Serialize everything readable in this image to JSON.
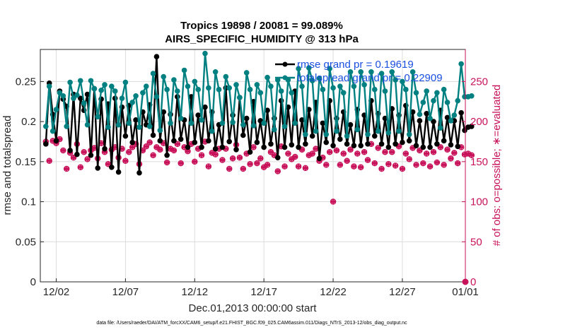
{
  "chart_data": {
    "type": "line",
    "title_line1": "Tropics 19898 / 20081 = 99.089%",
    "title_line2": "AIRS_SPECIFIC_HUMIDITY @ 313 hPa",
    "xlabel": "Dec.01,2013 00:00:00 start",
    "ylabel": "rmse and totalspread",
    "y2label": "# of obs: o=possible; ∗=evaluated",
    "footer": "data file: /Users/raeder/DAI/ATM_forcXX/CAM6_setup/f.e21.FHIST_BGC.f09_025.CAM6assim.011/Diags_NTrS_2013-12/obs_diag_output.nc",
    "xlim": [
      0.6,
      31.3
    ],
    "ylim": [
      0,
      0.29
    ],
    "y2lim": [
      0,
      290
    ],
    "xticks": [
      1.75,
      6.75,
      11.75,
      16.75,
      21.75,
      26.75,
      31.75
    ],
    "xtick_labels": [
      "12/02",
      "12/07",
      "12/12",
      "12/17",
      "12/22",
      "12/27",
      "01/01"
    ],
    "yticks": [
      0,
      0.05,
      0.1,
      0.15,
      0.2,
      0.25
    ],
    "ytick_labels": [
      "0",
      "0.05",
      "0.1",
      "0.15",
      "0.2",
      "0.25"
    ],
    "y2ticks": [
      0,
      50,
      100,
      150,
      200,
      250
    ],
    "y2tick_labels": [
      "0",
      "50",
      "100",
      "150",
      "200",
      "250"
    ],
    "series_meta": [
      {
        "name": "rmse grand pr = 0.19619",
        "color": "#000000"
      },
      {
        "name": "totalspread grand pr = 0.22909",
        "color": "#008080"
      },
      {
        "name": "obs possible",
        "color": "#c8125a"
      },
      {
        "name": "obs evaluated",
        "color": "#c8125a"
      }
    ],
    "n_points": 124,
    "x_start": 1.0,
    "x_step": 0.25,
    "series": [
      {
        "name": "rmse",
        "values": [
          0.172,
          0.248,
          0.209,
          0.176,
          0.238,
          0.228,
          0.219,
          0.164,
          0.234,
          0.159,
          0.229,
          0.214,
          0.234,
          0.158,
          0.241,
          0.142,
          0.228,
          0.166,
          0.222,
          0.143,
          0.229,
          0.137,
          0.218,
          0.182,
          0.22,
          0.174,
          0.202,
          0.136,
          0.212,
          0.196,
          0.221,
          0.183,
          0.281,
          0.176,
          0.212,
          0.158,
          0.209,
          0.176,
          0.231,
          0.178,
          0.202,
          0.168,
          0.231,
          0.174,
          0.208,
          0.168,
          0.218,
          0.176,
          0.212,
          0.166,
          0.196,
          0.168,
          0.242,
          0.175,
          0.208,
          0.165,
          0.23,
          0.183,
          0.204,
          0.162,
          0.225,
          0.174,
          0.201,
          0.168,
          0.214,
          0.172,
          0.204,
          0.155,
          0.226,
          0.168,
          0.218,
          0.171,
          0.238,
          0.168,
          0.202,
          0.172,
          0.215,
          0.182,
          0.224,
          0.154,
          0.198,
          0.174,
          0.226,
          0.17,
          0.204,
          0.178,
          0.212,
          0.172,
          0.196,
          0.17,
          0.215,
          0.17,
          0.208,
          0.172,
          0.226,
          0.182,
          0.21,
          0.172,
          0.204,
          0.168,
          0.216,
          0.172,
          0.208,
          0.174,
          0.22,
          0.176,
          0.212,
          0.17,
          0.201,
          0.168,
          0.21,
          0.168,
          0.2,
          0.172,
          0.214,
          0.176,
          0.205,
          0.171,
          0.201,
          0.169,
          0.211,
          0.189,
          0.193,
          0.194
        ]
      },
      {
        "name": "totalspread",
        "values": [
          0.194,
          0.244,
          0.188,
          0.215,
          0.236,
          0.232,
          0.194,
          0.249,
          0.229,
          0.233,
          0.251,
          0.223,
          0.196,
          0.251,
          0.241,
          0.206,
          0.239,
          0.246,
          0.193,
          0.244,
          0.238,
          0.196,
          0.229,
          0.249,
          0.198,
          0.224,
          0.232,
          0.193,
          0.236,
          0.244,
          0.194,
          0.26,
          0.231,
          0.189,
          0.256,
          0.24,
          0.198,
          0.252,
          0.238,
          0.204,
          0.264,
          0.244,
          0.198,
          0.25,
          0.24,
          0.202,
          0.285,
          0.242,
          0.188,
          0.262,
          0.24,
          0.198,
          0.256,
          0.242,
          0.199,
          0.246,
          0.23,
          0.196,
          0.261,
          0.24,
          0.195,
          0.246,
          0.236,
          0.198,
          0.255,
          0.244,
          0.19,
          0.252,
          0.238,
          0.194,
          0.252,
          0.236,
          0.198,
          0.266,
          0.244,
          0.184,
          0.267,
          0.251,
          0.188,
          0.254,
          0.24,
          0.184,
          0.266,
          0.242,
          0.188,
          0.244,
          0.236,
          0.182,
          0.262,
          0.244,
          0.19,
          0.262,
          0.246,
          0.184,
          0.262,
          0.24,
          0.188,
          0.26,
          0.238,
          0.186,
          0.262,
          0.252,
          0.188,
          0.25,
          0.24,
          0.184,
          0.262,
          0.236,
          0.209,
          0.224,
          0.238,
          0.204,
          0.226,
          0.236,
          0.192,
          0.24,
          0.224,
          0.201,
          0.208,
          0.226,
          0.272,
          0.231,
          0.231,
          0.232
        ]
      },
      {
        "name": "obs possible",
        "values": [
          175,
          151,
          176,
          173,
          178,
          164,
          141,
          161,
          155,
          172,
          143,
          162,
          153,
          164,
          167,
          154,
          173,
          162,
          147,
          165,
          168,
          155,
          166,
          151,
          162,
          168,
          172,
          147,
          164,
          169,
          174,
          158,
          168,
          165,
          173,
          149,
          166,
          164,
          172,
          148,
          168,
          163,
          172,
          150,
          166,
          158,
          175,
          144,
          161,
          159,
          166,
          152,
          166,
          141,
          154,
          171,
          155,
          141,
          160,
          147,
          168,
          148,
          154,
          143,
          146,
          162,
          158,
          138,
          169,
          144,
          160,
          153,
          156,
          144,
          165,
          142,
          158,
          160,
          166,
          151,
          155,
          146,
          162,
          100,
          164,
          146,
          160,
          151,
          165,
          144,
          160,
          143,
          162,
          152,
          172,
          148,
          167,
          141,
          162,
          147,
          162,
          145,
          169,
          141,
          160,
          153,
          167,
          146,
          164,
          148,
          160,
          144,
          162,
          149,
          168,
          146,
          165,
          154,
          161,
          148,
          168,
          159,
          160,
          158
        ]
      },
      {
        "name": "obs evaluated",
        "values": [
          175,
          151,
          176,
          173,
          178,
          164,
          141,
          161,
          155,
          172,
          143,
          162,
          153,
          164,
          167,
          154,
          173,
          162,
          147,
          165,
          168,
          155,
          166,
          151,
          162,
          168,
          172,
          147,
          164,
          169,
          174,
          158,
          168,
          165,
          173,
          149,
          166,
          164,
          172,
          148,
          168,
          163,
          172,
          150,
          166,
          158,
          175,
          144,
          161,
          159,
          166,
          152,
          166,
          141,
          154,
          171,
          155,
          141,
          160,
          147,
          168,
          148,
          154,
          143,
          146,
          162,
          158,
          138,
          169,
          144,
          160,
          153,
          156,
          144,
          165,
          142,
          158,
          160,
          166,
          151,
          155,
          146,
          162,
          100,
          164,
          146,
          160,
          151,
          165,
          144,
          160,
          143,
          162,
          152,
          172,
          148,
          167,
          141,
          162,
          147,
          162,
          145,
          169,
          141,
          160,
          153,
          167,
          146,
          164,
          148,
          160,
          144,
          162,
          149,
          168,
          146,
          165,
          154,
          161,
          148,
          168,
          159,
          160,
          158
        ]
      }
    ]
  }
}
